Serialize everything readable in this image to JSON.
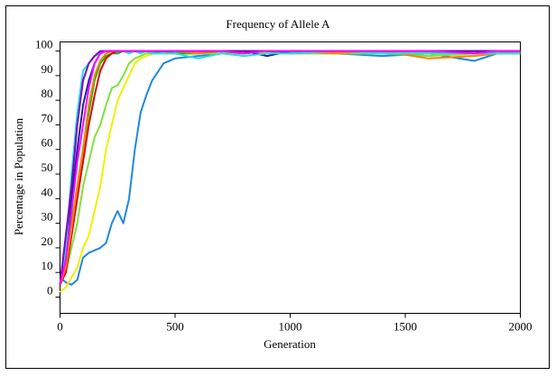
{
  "chart_data": {
    "type": "line",
    "title": "Frequency of Allele A",
    "xlabel": "Generation",
    "ylabel": "Percentage in Population",
    "x": [
      0,
      25,
      50,
      75,
      100,
      125,
      150,
      175,
      200,
      225,
      250,
      275,
      300,
      325,
      350,
      375,
      400,
      450,
      500,
      600,
      700,
      800,
      900,
      1000,
      1200,
      1400,
      1600,
      1800,
      1900,
      2000
    ],
    "xlim": [
      0,
      2000
    ],
    "xticks": [
      0,
      500,
      1000,
      1500,
      2000
    ],
    "ylim": [
      -6.6,
      103.7
    ],
    "yticks": [
      0,
      10,
      20,
      30,
      40,
      50,
      60,
      70,
      80,
      90,
      100
    ],
    "series": [
      {
        "color": "#1e88e5",
        "values": [
          8,
          6,
          5,
          7,
          16,
          18,
          19,
          20,
          22,
          30,
          35,
          30,
          40,
          60,
          75,
          82,
          88,
          95,
          97,
          98,
          99,
          99,
          100,
          99,
          99,
          98,
          99,
          96,
          99,
          99
        ]
      },
      {
        "color": "#f0f000",
        "values": [
          2,
          4,
          8,
          12,
          20,
          25,
          35,
          45,
          60,
          70,
          80,
          85,
          90,
          95,
          97,
          98,
          99,
          99,
          99,
          99,
          99,
          100,
          99,
          99,
          99,
          99,
          99,
          98,
          99,
          99
        ]
      },
      {
        "color": "#80e040",
        "values": [
          5,
          10,
          20,
          30,
          45,
          55,
          65,
          70,
          78,
          85,
          86,
          90,
          95,
          97,
          98,
          99,
          99,
          99,
          99,
          99,
          99,
          99,
          100,
          99,
          99,
          99,
          98,
          99,
          99,
          99
        ]
      },
      {
        "color": "#00c000",
        "values": [
          5,
          15,
          30,
          45,
          60,
          75,
          88,
          95,
          98,
          99,
          99,
          100,
          100,
          100,
          100,
          100,
          99,
          100,
          99,
          99,
          100,
          99,
          100,
          99,
          100,
          99,
          99,
          100,
          99,
          100
        ]
      },
      {
        "color": "#e00000",
        "values": [
          5,
          10,
          25,
          40,
          55,
          70,
          82,
          92,
          97,
          99,
          100,
          100,
          100,
          100,
          100,
          100,
          100,
          100,
          100,
          100,
          100,
          100,
          100,
          100,
          100,
          100,
          100,
          100,
          100,
          100
        ]
      },
      {
        "color": "#ff8000",
        "values": [
          5,
          12,
          28,
          45,
          60,
          78,
          90,
          96,
          99,
          100,
          100,
          100,
          100,
          100,
          100,
          100,
          100,
          100,
          100,
          99,
          100,
          100,
          100,
          100,
          99,
          100,
          97,
          98,
          99,
          100
        ]
      },
      {
        "color": "#2020a0",
        "values": [
          5,
          20,
          40,
          60,
          78,
          88,
          95,
          99,
          100,
          100,
          100,
          100,
          100,
          100,
          100,
          100,
          100,
          100,
          100,
          100,
          100,
          100,
          98,
          100,
          100,
          100,
          100,
          100,
          100,
          100
        ]
      },
      {
        "color": "#20e0e0",
        "values": [
          5,
          20,
          50,
          75,
          92,
          95,
          98,
          99,
          100,
          100,
          100,
          100,
          99,
          100,
          99,
          100,
          99,
          99,
          99,
          97,
          99,
          98,
          99,
          99,
          100,
          99,
          99,
          99,
          99,
          99
        ]
      },
      {
        "color": "#8000c0",
        "values": [
          5,
          25,
          45,
          70,
          88,
          95,
          98,
          100,
          100,
          100,
          100,
          100,
          100,
          100,
          100,
          100,
          100,
          100,
          100,
          100,
          100,
          100,
          100,
          100,
          100,
          100,
          100,
          100,
          100,
          100
        ]
      },
      {
        "color": "#ff00ff",
        "values": [
          5,
          15,
          35,
          55,
          70,
          85,
          95,
          99,
          100,
          100,
          100,
          100,
          100,
          100,
          100,
          100,
          100,
          100,
          100,
          100,
          100,
          99,
          100,
          100,
          100,
          100,
          100,
          99,
          100,
          100
        ]
      }
    ]
  }
}
